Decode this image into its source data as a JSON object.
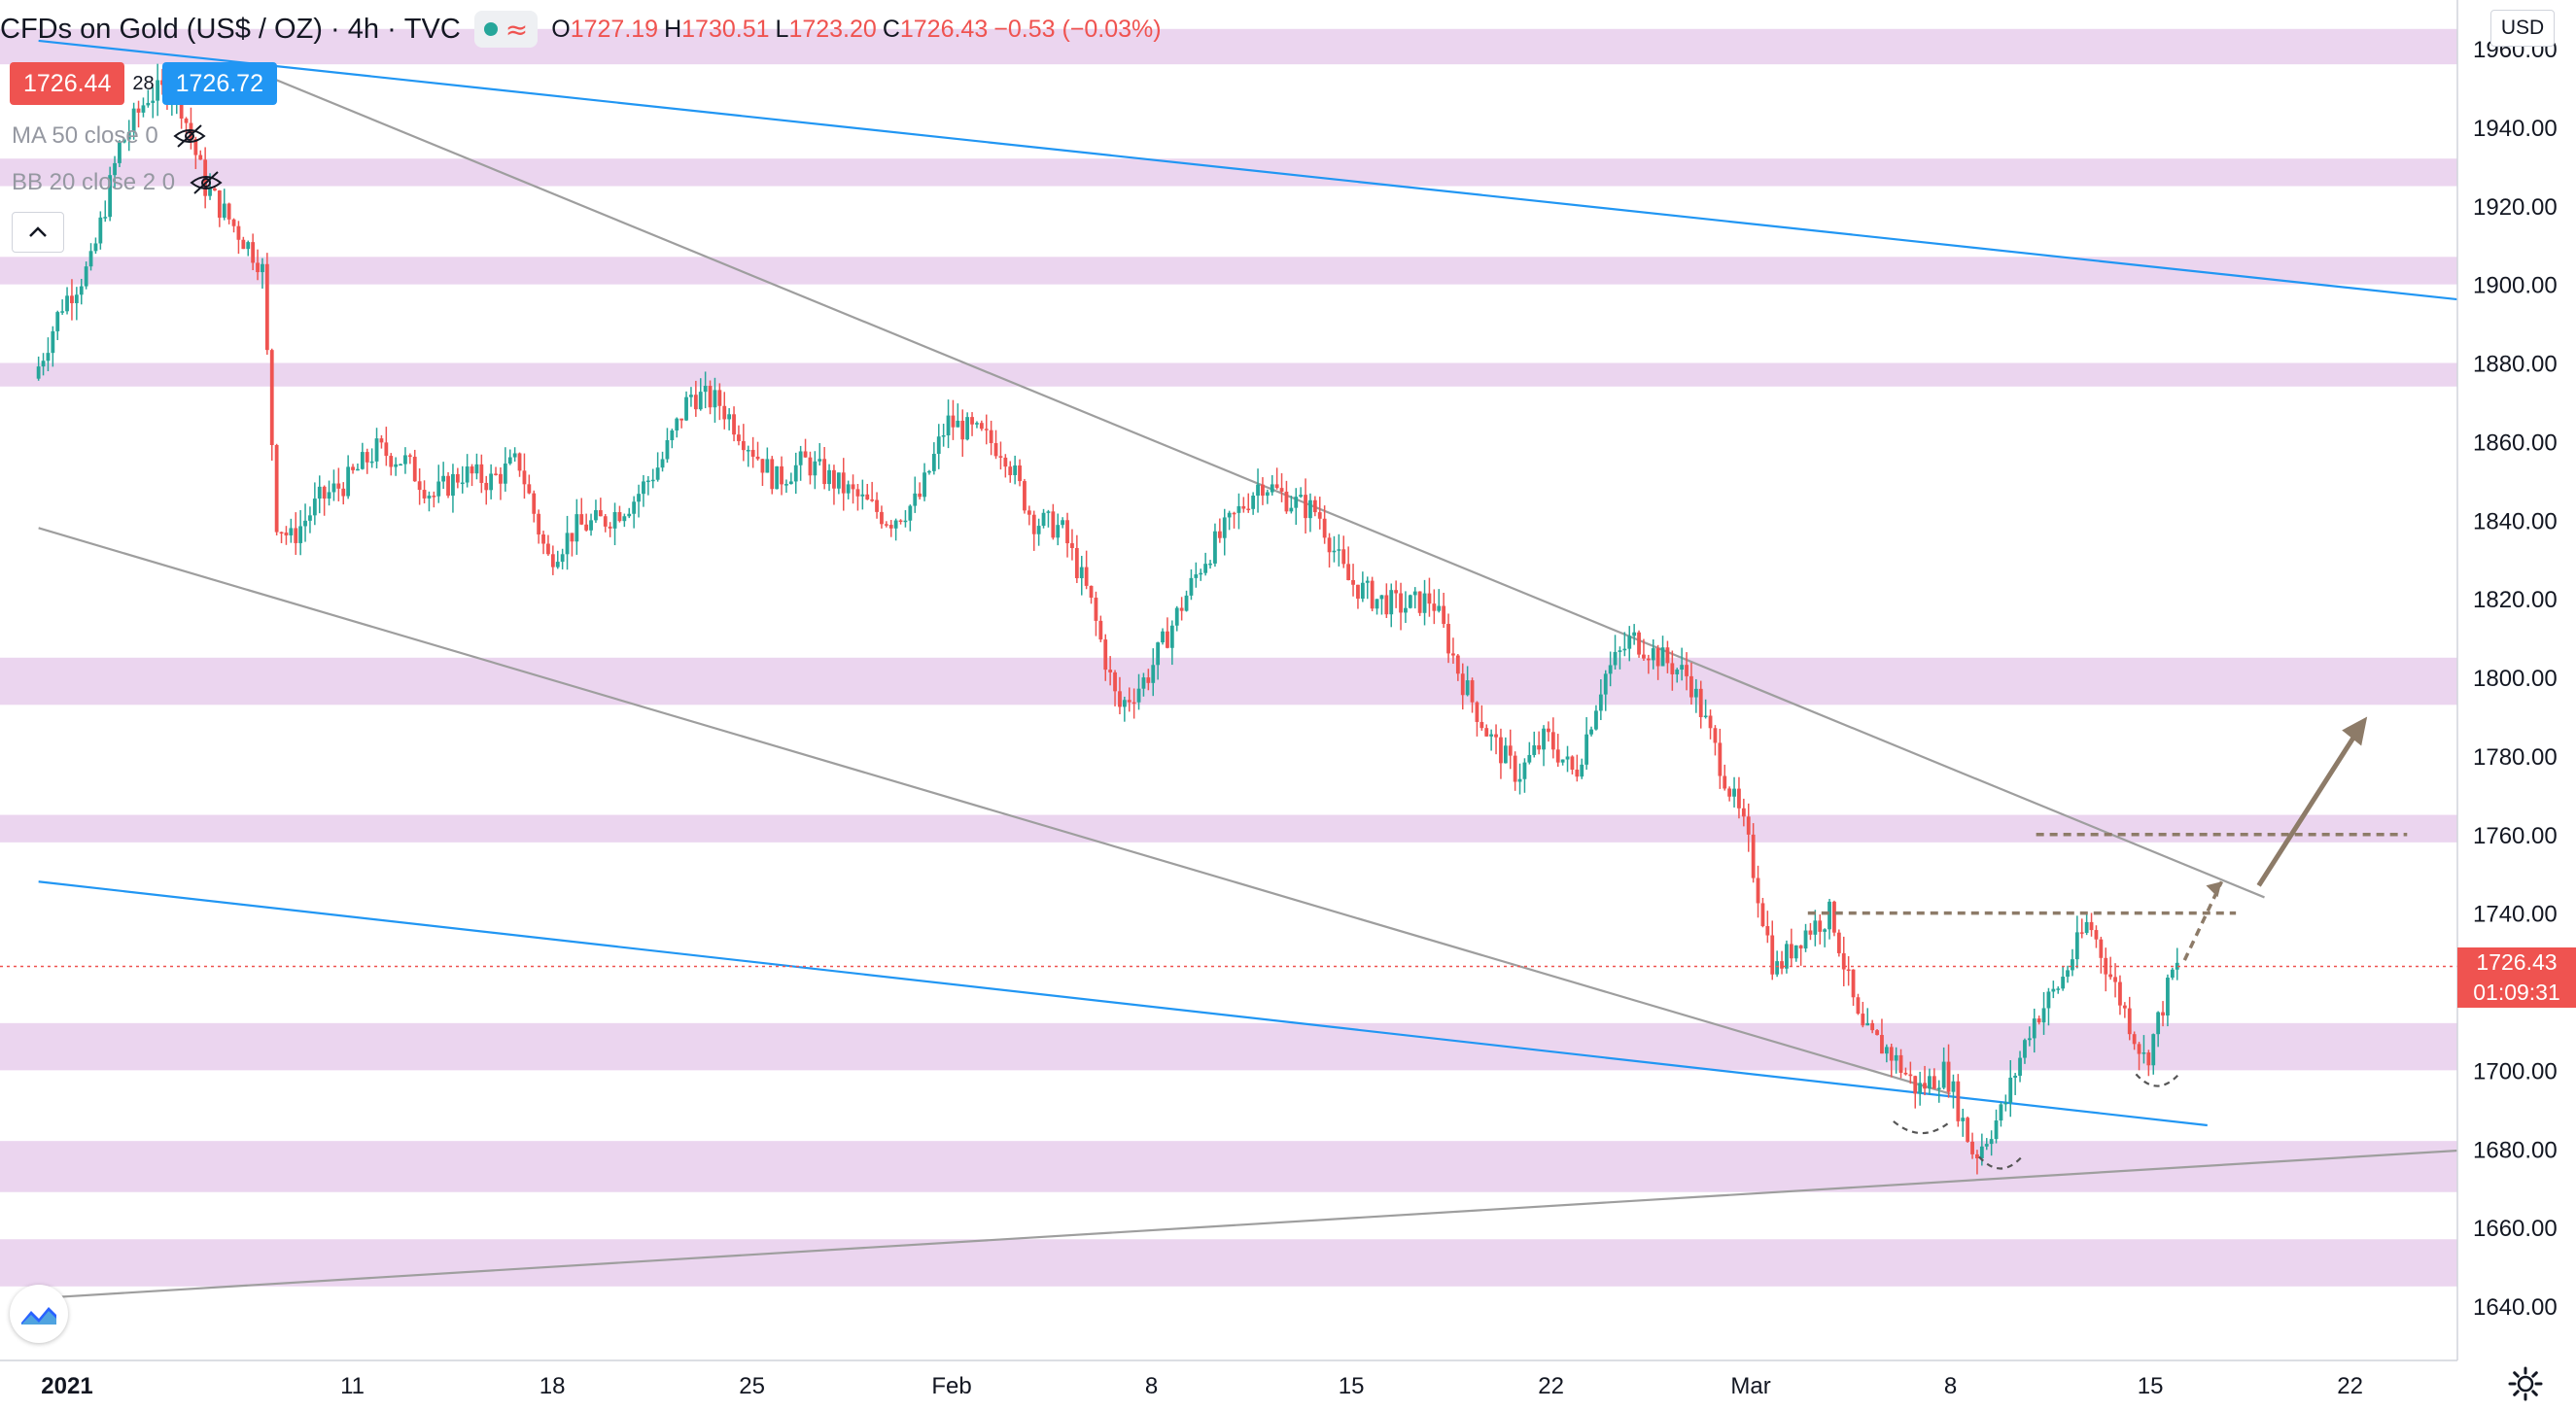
{
  "header": {
    "title": "CFDs on Gold (US$ / OZ)",
    "interval": "4h",
    "source": "TVC",
    "ohlc": {
      "open_label": "O",
      "open": "1727.19",
      "high_label": "H",
      "high": "1730.51",
      "low_label": "L",
      "low": "1723.20",
      "close_label": "C",
      "close": "1726.43",
      "change": "−0.53 (−0.03%)"
    }
  },
  "trade": {
    "sell": "1726.44",
    "spread": "28",
    "buy": "1726.72"
  },
  "indicators": [
    {
      "label": "MA 50 close 0"
    },
    {
      "label": "BB 20 close 2 0"
    }
  ],
  "currency": "USD",
  "current_price": {
    "value": "1726.43",
    "countdown": "01:09:31"
  },
  "colors": {
    "up": "#26a69a",
    "down": "#ef5350",
    "zone": "#e1bee7",
    "trendline_blue": "#2196f3",
    "trendline_gray": "#9e9e9e",
    "projection": "#8d7b68"
  },
  "chart_data": {
    "type": "candlestick",
    "symbol": "CFDs on Gold (US$ / OZ)",
    "interval": "4h",
    "ylim": [
      1630,
      1965
    ],
    "y_ticks": [
      {
        "value": 1960,
        "label": "1960.00"
      },
      {
        "value": 1940,
        "label": "1940.00"
      },
      {
        "value": 1920,
        "label": "1920.00"
      },
      {
        "value": 1900,
        "label": "1900.00"
      },
      {
        "value": 1880,
        "label": "1880.00"
      },
      {
        "value": 1860,
        "label": "1860.00"
      },
      {
        "value": 1840,
        "label": "1840.00"
      },
      {
        "value": 1820,
        "label": "1820.00"
      },
      {
        "value": 1800,
        "label": "1800.00"
      },
      {
        "value": 1780,
        "label": "1780.00"
      },
      {
        "value": 1760,
        "label": "1760.00"
      },
      {
        "value": 1740,
        "label": "1740.00"
      },
      {
        "value": 1700,
        "label": "1700.00"
      },
      {
        "value": 1680,
        "label": "1680.00"
      },
      {
        "value": 1660,
        "label": "1660.00"
      },
      {
        "value": 1640,
        "label": "1640.00"
      }
    ],
    "x_ticks": [
      {
        "date": "2021-01-01",
        "label": "2021"
      },
      {
        "date": "2021-01-11",
        "label": "11"
      },
      {
        "date": "2021-01-18",
        "label": "18"
      },
      {
        "date": "2021-01-25",
        "label": "25"
      },
      {
        "date": "2021-02-01",
        "label": "Feb"
      },
      {
        "date": "2021-02-08",
        "label": "8"
      },
      {
        "date": "2021-02-15",
        "label": "15"
      },
      {
        "date": "2021-02-22",
        "label": "22"
      },
      {
        "date": "2021-03-01",
        "label": "Mar"
      },
      {
        "date": "2021-03-08",
        "label": "8"
      },
      {
        "date": "2021-03-15",
        "label": "15"
      },
      {
        "date": "2021-03-22",
        "label": "22"
      }
    ],
    "price_path": [
      {
        "date": "2020-12-31",
        "price": 1876
      },
      {
        "date": "2021-01-01",
        "price": 1895
      },
      {
        "date": "2021-01-02",
        "price": 1905
      },
      {
        "date": "2021-01-03",
        "price": 1935
      },
      {
        "date": "2021-01-04",
        "price": 1948
      },
      {
        "date": "2021-01-05",
        "price": 1950
      },
      {
        "date": "2021-01-06",
        "price": 1925
      },
      {
        "date": "2021-01-07",
        "price": 1915
      },
      {
        "date": "2021-01-08",
        "price": 1905
      },
      {
        "date": "2021-01-08.5",
        "price": 1840
      },
      {
        "date": "2021-01-09",
        "price": 1835
      },
      {
        "date": "2021-01-10",
        "price": 1845
      },
      {
        "date": "2021-01-11",
        "price": 1850
      },
      {
        "date": "2021-01-12",
        "price": 1858
      },
      {
        "date": "2021-01-13",
        "price": 1855
      },
      {
        "date": "2021-01-14",
        "price": 1846
      },
      {
        "date": "2021-01-15",
        "price": 1852
      },
      {
        "date": "2021-01-16",
        "price": 1850
      },
      {
        "date": "2021-01-17",
        "price": 1855
      },
      {
        "date": "2021-01-18",
        "price": 1830
      },
      {
        "date": "2021-01-19",
        "price": 1838
      },
      {
        "date": "2021-01-20",
        "price": 1840
      },
      {
        "date": "2021-01-21",
        "price": 1845
      },
      {
        "date": "2021-01-22",
        "price": 1855
      },
      {
        "date": "2021-01-23",
        "price": 1872
      },
      {
        "date": "2021-01-24",
        "price": 1870
      },
      {
        "date": "2021-01-25",
        "price": 1860
      },
      {
        "date": "2021-01-26",
        "price": 1850
      },
      {
        "date": "2021-01-27",
        "price": 1855
      },
      {
        "date": "2021-01-28",
        "price": 1850
      },
      {
        "date": "2021-01-29",
        "price": 1845
      },
      {
        "date": "2021-01-30",
        "price": 1840
      },
      {
        "date": "2021-01-31",
        "price": 1845
      },
      {
        "date": "2021-02-01",
        "price": 1865
      },
      {
        "date": "2021-02-02",
        "price": 1862
      },
      {
        "date": "2021-02-03",
        "price": 1858
      },
      {
        "date": "2021-02-04",
        "price": 1840
      },
      {
        "date": "2021-02-05",
        "price": 1838
      },
      {
        "date": "2021-02-06",
        "price": 1820
      },
      {
        "date": "2021-02-07",
        "price": 1792
      },
      {
        "date": "2021-02-08",
        "price": 1800
      },
      {
        "date": "2021-02-09",
        "price": 1815
      },
      {
        "date": "2021-02-10",
        "price": 1830
      },
      {
        "date": "2021-02-11",
        "price": 1840
      },
      {
        "date": "2021-02-12",
        "price": 1850
      },
      {
        "date": "2021-02-13",
        "price": 1845
      },
      {
        "date": "2021-02-14",
        "price": 1842
      },
      {
        "date": "2021-02-15",
        "price": 1825
      },
      {
        "date": "2021-02-16",
        "price": 1820
      },
      {
        "date": "2021-02-17",
        "price": 1818
      },
      {
        "date": "2021-02-18",
        "price": 1820
      },
      {
        "date": "2021-02-19",
        "price": 1800
      },
      {
        "date": "2021-02-20",
        "price": 1785
      },
      {
        "date": "2021-02-21",
        "price": 1775
      },
      {
        "date": "2021-02-22",
        "price": 1785
      },
      {
        "date": "2021-02-23",
        "price": 1775
      },
      {
        "date": "2021-02-24",
        "price": 1800
      },
      {
        "date": "2021-02-25",
        "price": 1810
      },
      {
        "date": "2021-02-26",
        "price": 1805
      },
      {
        "date": "2021-02-27",
        "price": 1800
      },
      {
        "date": "2021-02-28",
        "price": 1780
      },
      {
        "date": "2021-03-01",
        "price": 1760
      },
      {
        "date": "2021-03-02",
        "price": 1725
      },
      {
        "date": "2021-03-03",
        "price": 1735
      },
      {
        "date": "2021-03-04",
        "price": 1740
      },
      {
        "date": "2021-03-05",
        "price": 1710
      },
      {
        "date": "2021-03-06",
        "price": 1705
      },
      {
        "date": "2021-03-07",
        "price": 1695
      },
      {
        "date": "2021-03-08",
        "price": 1700
      },
      {
        "date": "2021-03-09",
        "price": 1678
      },
      {
        "date": "2021-03-10",
        "price": 1690
      },
      {
        "date": "2021-03-11",
        "price": 1712
      },
      {
        "date": "2021-03-12",
        "price": 1722
      },
      {
        "date": "2021-03-13",
        "price": 1738
      },
      {
        "date": "2021-03-14",
        "price": 1720
      },
      {
        "date": "2021-03-15",
        "price": 1702
      },
      {
        "date": "2021-03-16",
        "price": 1726
      }
    ],
    "zones": [
      {
        "low": 1956,
        "high": 1965
      },
      {
        "low": 1925,
        "high": 1932
      },
      {
        "low": 1900,
        "high": 1907
      },
      {
        "low": 1874,
        "high": 1880
      },
      {
        "low": 1793,
        "high": 1805
      },
      {
        "low": 1758,
        "high": 1765
      },
      {
        "low": 1700,
        "high": 1712
      },
      {
        "low": 1669,
        "high": 1682
      },
      {
        "low": 1645,
        "high": 1657
      }
    ],
    "trendlines": [
      {
        "color": "blue",
        "from": {
          "date": "2020-12-31",
          "price": 1962
        },
        "to": {
          "date": "2021-03-26",
          "price": 1896
        }
      },
      {
        "color": "blue",
        "from": {
          "date": "2020-12-31",
          "price": 1748
        },
        "to": {
          "date": "2021-03-17",
          "price": 1686
        }
      },
      {
        "color": "gray",
        "from": {
          "date": "2021-01-07",
          "price": 1956
        },
        "to": {
          "date": "2021-03-19",
          "price": 1744
        }
      },
      {
        "color": "gray",
        "from": {
          "date": "2020-12-31",
          "price": 1838
        },
        "to": {
          "date": "2021-03-08",
          "price": 1694
        }
      },
      {
        "color": "gray",
        "from": {
          "date": "2020-12-31",
          "price": 1642
        },
        "to": {
          "date": "2021-03-29",
          "price": 1681
        }
      }
    ],
    "levels": [
      {
        "price": 1740,
        "from": "2021-03-03",
        "to": "2021-03-18"
      },
      {
        "price": 1760,
        "from": "2021-03-11",
        "to": "2021-03-24"
      }
    ],
    "current_price": 1726.43
  }
}
